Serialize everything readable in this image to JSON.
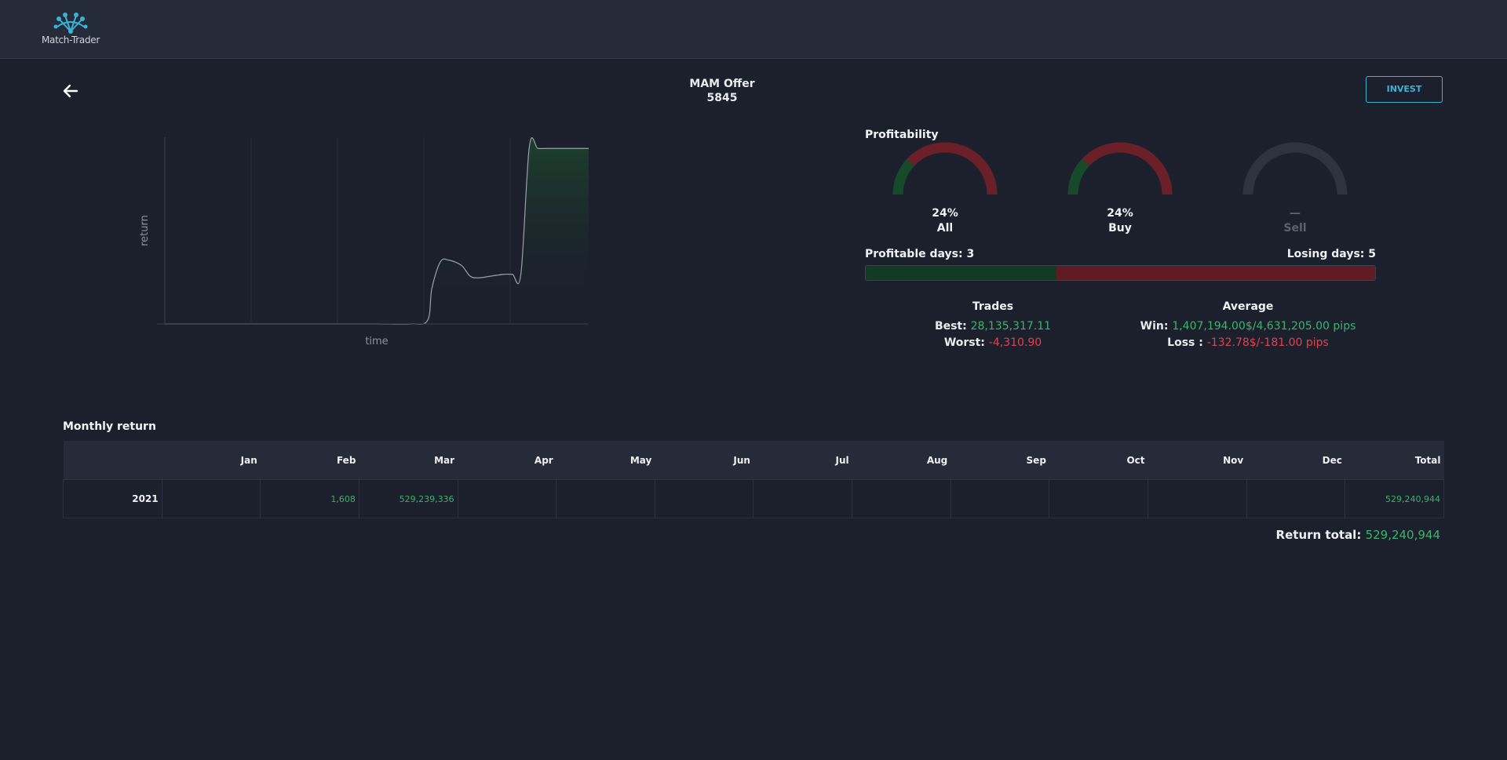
{
  "brand": {
    "name": "Match-Trader",
    "color": "#3bb3d6"
  },
  "header": {
    "back_icon": "arrow-left-icon",
    "title": "MAM Offer",
    "subtitle": "5845",
    "invest_label": "INVEST"
  },
  "chart_data": {
    "type": "line",
    "xlabel": "time",
    "ylabel": "return",
    "grid": true,
    "line_color": "#9ba1ab",
    "fill_color": "#1d5a2c",
    "x": [
      0,
      0.2,
      0.4,
      0.5,
      0.58,
      0.62,
      0.63,
      0.65,
      0.67,
      0.7,
      0.72,
      0.74,
      0.77,
      0.8,
      0.82,
      0.84,
      0.86,
      0.88,
      0.9,
      0.92,
      0.95,
      1.0
    ],
    "y": [
      0,
      0,
      0,
      0,
      0,
      0.02,
      0.2,
      0.35,
      0.36,
      0.33,
      0.27,
      0.26,
      0.27,
      0.28,
      0.28,
      0.28,
      1.0,
      0.99,
      0.99,
      0.99,
      0.99,
      0.99
    ]
  },
  "profitability": {
    "title": "Profitability",
    "gauges": [
      {
        "value": "24%",
        "caption": "All",
        "fraction": 0.24
      },
      {
        "value": "24%",
        "caption": "Buy",
        "fraction": 0.24
      },
      {
        "value": "—",
        "caption": "Sell",
        "fraction": null
      }
    ],
    "colors": {
      "win": "#174a2b",
      "loss": "#6b1f29",
      "empty": "#2e333e"
    }
  },
  "days": {
    "profitable_label": "Profitable days: 3",
    "losing_label": "Losing days: 5",
    "profitable": 3,
    "losing": 5
  },
  "trades": {
    "title": "Trades",
    "best_label": "Best:",
    "best_value": "28,135,317.11",
    "worst_label": "Worst:",
    "worst_value": "-4,310.90"
  },
  "average": {
    "title": "Average",
    "win_label": "Win:",
    "win_value": "1,407,194.00$/4,631,205.00 pips",
    "loss_label": "Loss :",
    "loss_value": "-132.78$/-181.00 pips"
  },
  "monthly": {
    "title": "Monthly return",
    "columns": [
      "",
      "Jan",
      "Feb",
      "Mar",
      "Apr",
      "May",
      "Jun",
      "Jul",
      "Aug",
      "Sep",
      "Oct",
      "Nov",
      "Dec",
      "Total"
    ],
    "rows": [
      {
        "year": "2021",
        "cells": [
          "",
          "1,608",
          "529,239,336",
          "",
          "",
          "",
          "",
          "",
          "",
          "",
          "",
          "",
          "529,240,944"
        ]
      }
    ],
    "return_total_label": "Return total:",
    "return_total_value": "529,240,944"
  }
}
